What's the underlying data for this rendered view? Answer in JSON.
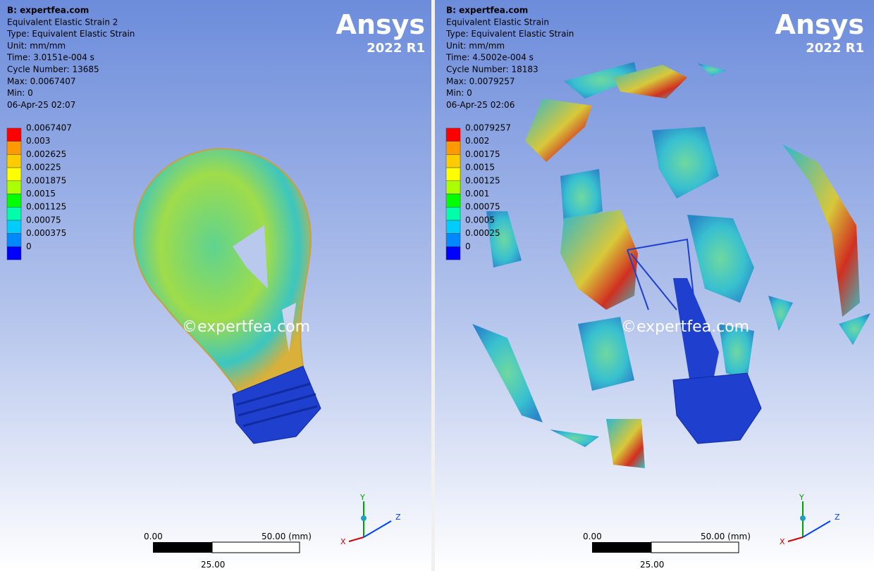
{
  "panels": [
    {
      "header": [
        "B: expertfea.com",
        "Equivalent Elastic Strain 2",
        "Type: Equivalent Elastic Strain",
        "Unit: mm/mm",
        "Time: 3.0151e-004 s",
        "Cycle Number: 13685",
        "Max: 0.0067407",
        "Min: 0",
        "06-Apr-25 02:07"
      ],
      "legend": [
        "0.0067407",
        "0.003",
        "0.002625",
        "0.00225",
        "0.001875",
        "0.0015",
        "0.001125",
        "0.00075",
        "0.000375",
        "0"
      ],
      "logo": "Ansys",
      "version": "2022 R1",
      "watermark": "©expertfea.com",
      "scale": {
        "start": "0.00",
        "end": "50.00 (mm)",
        "mid": "25.00"
      },
      "axes": {
        "x": "X",
        "y": "Y",
        "z": "Z"
      }
    },
    {
      "header": [
        "B: expertfea.com",
        "Equivalent Elastic Strain",
        "Type: Equivalent Elastic Strain",
        "Unit: mm/mm",
        "Time: 4.5002e-004 s",
        "Cycle Number: 18183",
        "Max: 0.0079257",
        "Min: 0",
        "06-Apr-25 02:06"
      ],
      "legend": [
        "0.0079257",
        "0.002",
        "0.00175",
        "0.0015",
        "0.00125",
        "0.001",
        "0.00075",
        "0.0005",
        "0.00025",
        "0"
      ],
      "logo": "Ansys",
      "version": "2022 R1",
      "watermark": "©expertfea.com",
      "scale": {
        "start": "0.00",
        "end": "50.00 (mm)",
        "mid": "25.00"
      },
      "axes": {
        "x": "X",
        "y": "Y",
        "z": "Z"
      }
    }
  ]
}
